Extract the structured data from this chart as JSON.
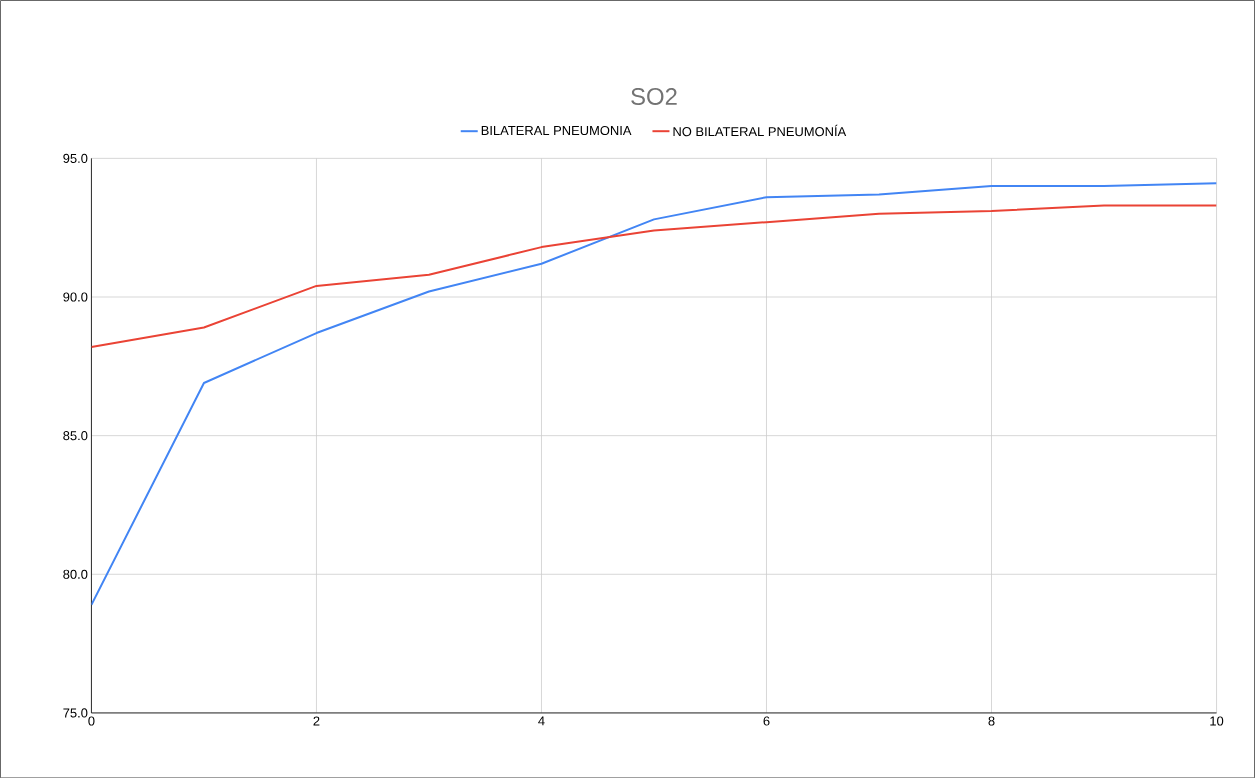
{
  "chart_data": {
    "type": "line",
    "title": "SO2",
    "x": [
      0,
      1,
      2,
      3,
      4,
      5,
      6,
      7,
      8,
      9,
      10
    ],
    "series": [
      {
        "name": "BILATERAL PNEUMONIA",
        "color": "#4285f4",
        "values": [
          78.9,
          86.9,
          88.7,
          90.2,
          91.2,
          92.8,
          93.6,
          93.7,
          94.0,
          94.0,
          94.1
        ]
      },
      {
        "name": "NO BILATERAL PNEUMONÍA",
        "color": "#ea4335",
        "values": [
          88.2,
          88.9,
          90.4,
          90.8,
          91.8,
          92.4,
          92.7,
          93.0,
          93.1,
          93.3,
          93.3
        ]
      }
    ],
    "xlim": [
      0,
      10
    ],
    "xticks": [
      0,
      2,
      4,
      6,
      8,
      10
    ],
    "ylim": [
      75,
      95
    ],
    "yticks": [
      {
        "value": 75,
        "label": "75.0"
      },
      {
        "value": 80,
        "label": "80.0"
      },
      {
        "value": 85,
        "label": "85.0"
      },
      {
        "value": 90,
        "label": "90.0"
      },
      {
        "value": 95,
        "label": "95.0"
      }
    ],
    "grid": true,
    "legend": "top",
    "marker": "none",
    "line_style": "solid"
  }
}
